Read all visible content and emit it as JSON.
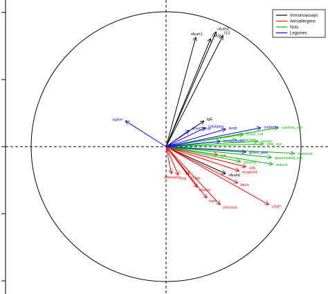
{
  "chart_data": {
    "type": "scatter",
    "subtype": "correlation-circle-biplot",
    "title": "",
    "xlabel": "",
    "ylabel": "",
    "xlim": [
      -1.06,
      1.0
    ],
    "ylim": [
      -1.03,
      1.04
    ],
    "grid": false,
    "reference_lines": "dashed x=0 and y=0",
    "unit_circle": true,
    "legend_position": "top-right",
    "groups": [
      {
        "name": "Immunoassays",
        "color": "#000000"
      },
      {
        "name": "Aeroallergens",
        "color": "#ff0000"
      },
      {
        "name": "Nuts",
        "color": "#00bb00"
      },
      {
        "name": "Legumes",
        "color": "#0000ff"
      }
    ],
    "variables": [
      {
        "label": "rArah1",
        "group": "Immunoassays",
        "x": 0.22,
        "y": 0.81
      },
      {
        "label": "rArah3",
        "group": "Immunoassays",
        "x": 0.33,
        "y": 0.8
      },
      {
        "label": "rArah2",
        "group": "Immunoassays",
        "x": 0.37,
        "y": 0.85
      },
      {
        "label": "f13",
        "group": "Immunoassays",
        "x": 0.42,
        "y": 0.82
      },
      {
        "label": "IgE",
        "group": "Immunoassays",
        "x": 0.28,
        "y": 0.19
      },
      {
        "label": "rArah6",
        "group": "Immunoassays",
        "x": 0.44,
        "y": -0.2
      },
      {
        "label": "alternaria",
        "group": "Aeroallergens",
        "x": 0.04,
        "y": -0.2
      },
      {
        "label": "dog",
        "group": "Aeroallergens",
        "x": 0.09,
        "y": -0.21
      },
      {
        "label": "D.pte",
        "group": "Aeroallergens",
        "x": 0.17,
        "y": -0.21
      },
      {
        "label": "ribwort",
        "group": "Aeroallergens",
        "x": 0.23,
        "y": -0.3
      },
      {
        "label": "rape",
        "group": "Aeroallergens",
        "x": 0.3,
        "y": -0.38
      },
      {
        "label": "chestnut",
        "group": "Aeroallergens",
        "x": 0.4,
        "y": -0.43
      },
      {
        "label": "birch",
        "group": "Aeroallergens",
        "x": 0.53,
        "y": -0.27
      },
      {
        "label": "mugwort",
        "group": "Aeroallergens",
        "x": 0.54,
        "y": -0.18
      },
      {
        "label": "ash",
        "group": "Aeroallergens",
        "x": 0.59,
        "y": -0.15
      },
      {
        "label": "cat",
        "group": "Aeroallergens",
        "x": 0.38,
        "y": -0.06
      },
      {
        "label": "rZGP",
        "group": "Aeroallergens",
        "x": 0.76,
        "y": -0.43
      },
      {
        "label": "cashew_nut",
        "group": "Nuts",
        "x": 0.83,
        "y": 0.14
      },
      {
        "label": "brazil_nut",
        "group": "Nuts",
        "x": 0.57,
        "y": 0.09
      },
      {
        "label": "pistachio",
        "group": "Nuts",
        "x": 0.52,
        "y": 0.05
      },
      {
        "label": "pecan",
        "group": "Nuts",
        "x": 0.68,
        "y": 0.04
      },
      {
        "label": "pine_nut",
        "group": "Nuts",
        "x": 0.72,
        "y": 0.02
      },
      {
        "label": "hazelnut",
        "group": "Nuts",
        "x": 0.95,
        "y": -0.05
      },
      {
        "label": "almond",
        "group": "Nuts",
        "x": 0.55,
        "y": -0.11
      },
      {
        "label": "walnut",
        "group": "Nuts",
        "x": 0.79,
        "y": -0.13
      },
      {
        "label": "queensland_nut",
        "group": "Nuts",
        "x": 0.78,
        "y": -0.08
      },
      {
        "label": "lupine",
        "group": "Legumes",
        "x": -0.3,
        "y": 0.19
      },
      {
        "label": "chickpea",
        "group": "Legumes",
        "x": 0.29,
        "y": 0.14
      },
      {
        "label": "dried_bean",
        "group": "Legumes",
        "x": 0.17,
        "y": 0.12
      },
      {
        "label": "lentil",
        "group": "Legumes",
        "x": 0.44,
        "y": 0.13
      },
      {
        "label": "soybean",
        "group": "Legumes",
        "x": 0.7,
        "y": 0.14
      },
      {
        "label": "broad_bean",
        "group": "Legumes",
        "x": 0.4,
        "y": 0.04
      },
      {
        "label": "green_pea",
        "group": "Legumes",
        "x": 0.59,
        "y": -0.04
      }
    ]
  }
}
